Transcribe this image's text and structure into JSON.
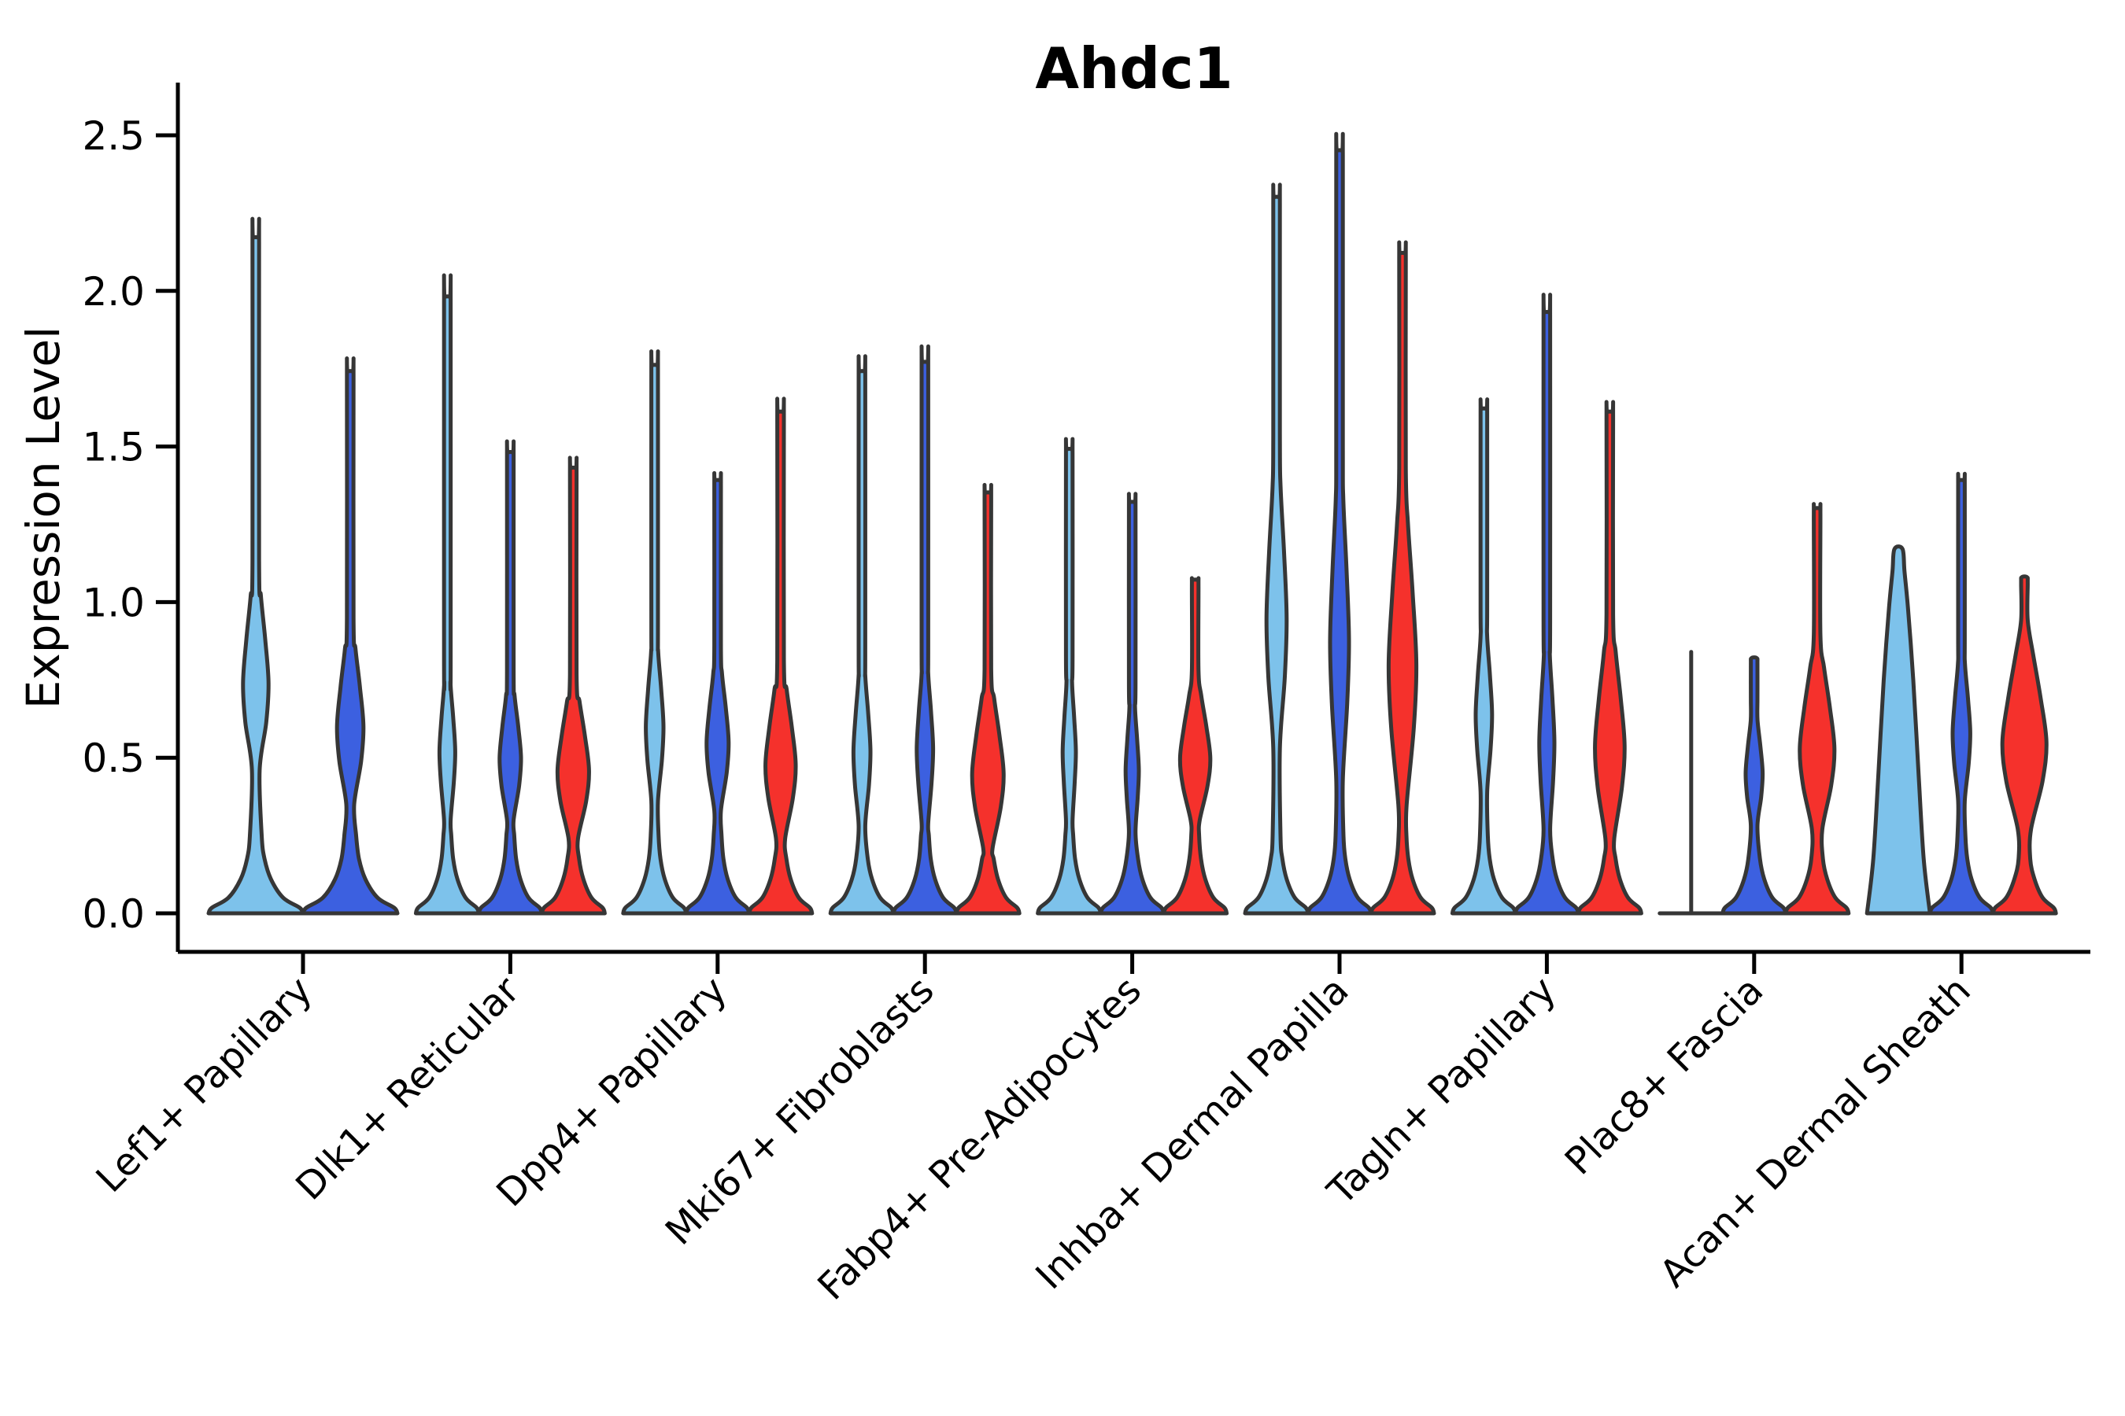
{
  "chart_data": {
    "type": "violin",
    "title": "Ahdc1",
    "ylabel": "Expression Level",
    "xlabel": "",
    "yticks": [
      "0.0",
      "0.5",
      "1.0",
      "1.5",
      "2.0",
      "2.5"
    ],
    "ytick_values": [
      0.0,
      0.5,
      1.0,
      1.5,
      2.0,
      2.5
    ],
    "ylim": [
      -0.12,
      2.66
    ],
    "grid": "off",
    "legend": "none",
    "palette": {
      "skyblue": "#7DC2EB",
      "royalblue": "#3C60E0",
      "red": "#F5312C",
      "outline": "#363636"
    },
    "categories": [
      "Lef1+ Papillary",
      "Dlk1+ Reticular",
      "Dpp4+ Papillary",
      "Mki67+ Fibroblasts",
      "Fabp4+ Pre-Adipocytes",
      "Inhba+ Dermal Papilla",
      "Tagln+ Papillary",
      "Plac8+ Fascia",
      "Acan+ Dermal Sheath"
    ],
    "groups": [
      {
        "category": "Lef1+ Papillary",
        "violins": [
          {
            "color": "skyblue",
            "shape": "standard",
            "max": 2.17,
            "bulge": {
              "c": 0.74,
              "f": 0.27,
              "s": 0.28
            }
          },
          {
            "color": "royalblue",
            "shape": "standard",
            "max": 1.74,
            "bulge": {
              "c": 0.6,
              "f": 0.28,
              "s": 0.25
            }
          }
        ]
      },
      {
        "category": "Dlk1+ Reticular",
        "violins": [
          {
            "color": "skyblue",
            "shape": "standard",
            "max": 1.98,
            "bulge": {
              "c": 0.52,
              "f": 0.25,
              "s": 0.22
            }
          },
          {
            "color": "royalblue",
            "shape": "standard",
            "max": 1.48,
            "bulge": {
              "c": 0.5,
              "f": 0.34,
              "s": 0.2
            }
          },
          {
            "color": "red",
            "shape": "standard",
            "max": 1.43,
            "bulge": {
              "c": 0.46,
              "f": 0.5,
              "s": 0.22
            }
          }
        ]
      },
      {
        "category": "Dpp4+ Papillary",
        "violins": [
          {
            "color": "skyblue",
            "shape": "standard",
            "max": 1.76,
            "bulge": {
              "c": 0.6,
              "f": 0.28,
              "s": 0.24
            }
          },
          {
            "color": "royalblue",
            "shape": "standard",
            "max": 1.39,
            "bulge": {
              "c": 0.55,
              "f": 0.35,
              "s": 0.22
            }
          },
          {
            "color": "red",
            "shape": "standard",
            "max": 1.61,
            "bulge": {
              "c": 0.48,
              "f": 0.48,
              "s": 0.24
            }
          }
        ]
      },
      {
        "category": "Mki67+ Fibroblasts",
        "violins": [
          {
            "color": "skyblue",
            "shape": "standard",
            "max": 1.74,
            "bulge": {
              "c": 0.52,
              "f": 0.27,
              "s": 0.24
            }
          },
          {
            "color": "royalblue",
            "shape": "standard",
            "max": 1.77,
            "bulge": {
              "c": 0.53,
              "f": 0.26,
              "s": 0.24
            }
          },
          {
            "color": "red",
            "shape": "standard",
            "max": 1.35,
            "bulge": {
              "c": 0.45,
              "f": 0.5,
              "s": 0.24
            }
          }
        ]
      },
      {
        "category": "Fabp4+ Pre-Adipocytes",
        "violins": [
          {
            "color": "skyblue",
            "shape": "standard",
            "max": 1.49,
            "bulge": {
              "c": 0.52,
              "f": 0.21,
              "s": 0.22
            }
          },
          {
            "color": "royalblue",
            "shape": "standard",
            "max": 1.32,
            "bulge": {
              "c": 0.46,
              "f": 0.21,
              "s": 0.2
            }
          },
          {
            "color": "red",
            "shape": "standard",
            "max": 1.07,
            "bulge": {
              "c": 0.5,
              "f": 0.48,
              "s": 0.2
            }
          }
        ]
      },
      {
        "category": "Inhba+ Dermal Papilla",
        "violins": [
          {
            "color": "skyblue",
            "shape": "standard",
            "max": 2.3,
            "bulge": {
              "c": 0.95,
              "f": 0.32,
              "s": 0.42
            }
          },
          {
            "color": "royalblue",
            "shape": "standard",
            "max": 2.45,
            "bulge": {
              "c": 0.88,
              "f": 0.3,
              "s": 0.45
            }
          },
          {
            "color": "red",
            "shape": "standard",
            "max": 2.12,
            "bulge": {
              "c": 0.8,
              "f": 0.44,
              "s": 0.45
            }
          }
        ]
      },
      {
        "category": "Tagln+ Papillary",
        "violins": [
          {
            "color": "skyblue",
            "shape": "standard",
            "max": 1.62,
            "bulge": {
              "c": 0.64,
              "f": 0.26,
              "s": 0.25
            }
          },
          {
            "color": "royalblue",
            "shape": "standard",
            "max": 1.93,
            "bulge": {
              "c": 0.55,
              "f": 0.24,
              "s": 0.28
            }
          },
          {
            "color": "red",
            "shape": "standard",
            "max": 1.61,
            "bulge": {
              "c": 0.54,
              "f": 0.47,
              "s": 0.3
            }
          }
        ]
      },
      {
        "category": "Plac8+ Fascia",
        "violins": [
          {
            "color": "skyblue",
            "shape": "line",
            "max": 0.84
          },
          {
            "color": "royalblue",
            "shape": "standard",
            "max": 0.82,
            "bulge": {
              "c": 0.45,
              "f": 0.27,
              "s": 0.17
            }
          },
          {
            "color": "red",
            "shape": "standard",
            "max": 1.3,
            "bulge": {
              "c": 0.53,
              "f": 0.55,
              "s": 0.26
            }
          }
        ]
      },
      {
        "category": "Acan+ Dermal Sheath",
        "violins": [
          {
            "color": "skyblue",
            "shape": "cone",
            "max": 1.17
          },
          {
            "color": "royalblue",
            "shape": "standard",
            "max": 1.39,
            "bulge": {
              "c": 0.58,
              "f": 0.28,
              "s": 0.22
            }
          },
          {
            "color": "red",
            "shape": "standard",
            "max": 1.08,
            "bulge": {
              "c": 0.55,
              "f": 0.7,
              "s": 0.28
            }
          }
        ]
      }
    ]
  }
}
